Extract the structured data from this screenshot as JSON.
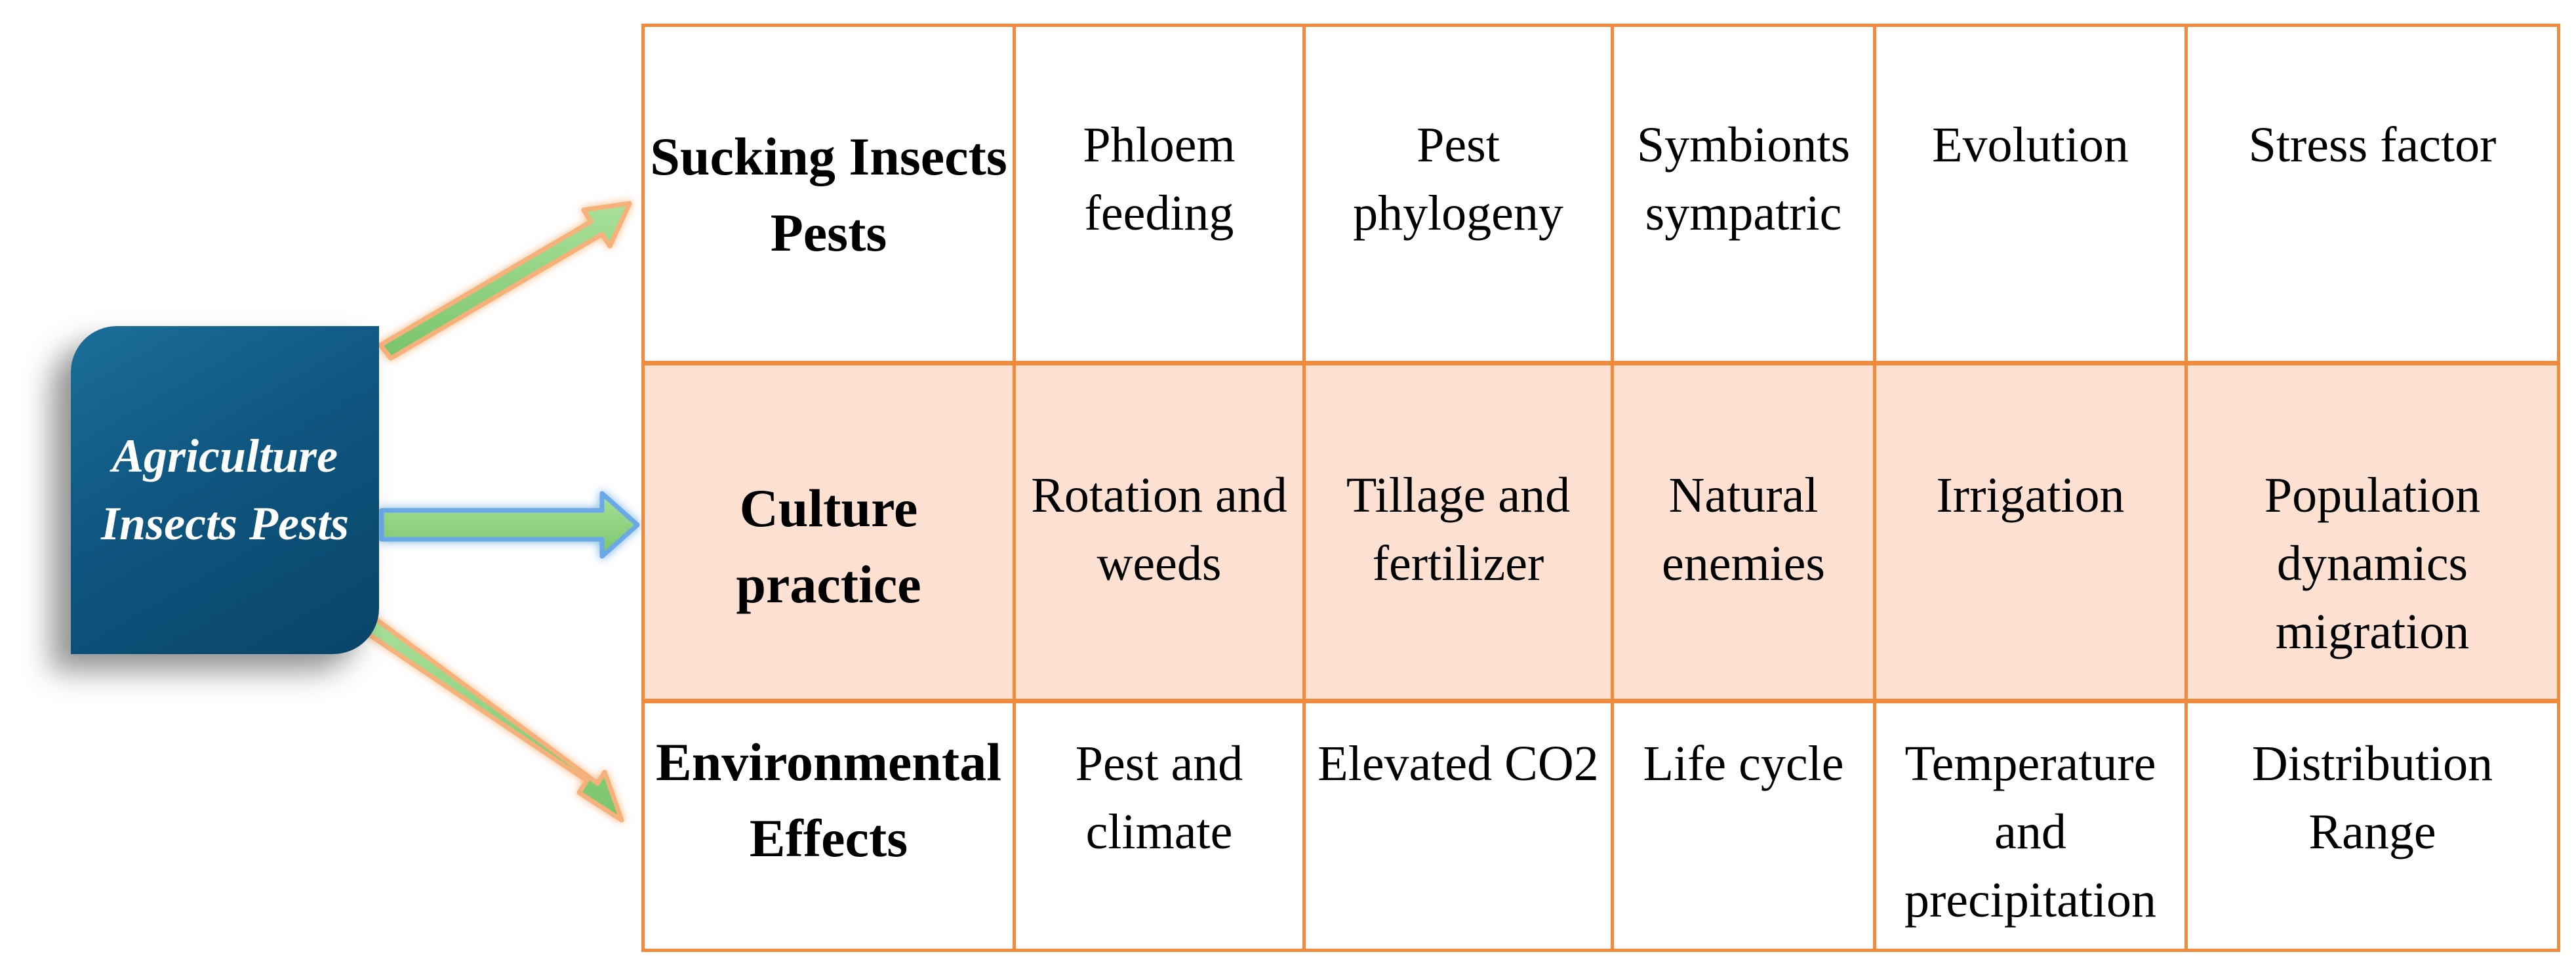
{
  "hub": {
    "label": "Agriculture Insects Pests"
  },
  "table": {
    "rows": [
      {
        "header": "Sucking Insects Pests",
        "cells": [
          "Phloem feeding",
          "Pest phylogeny",
          "Symbionts sympatric",
          "Evolution",
          "Stress factor"
        ]
      },
      {
        "header": "Culture practice",
        "cells": [
          "Rotation and weeds",
          "Tillage and fertilizer",
          "Natural enemies",
          "Irrigation",
          "Population dynamics migration"
        ]
      },
      {
        "header": "Environmental Effects",
        "cells": [
          "Pest and climate",
          "Elevated CO2",
          "Life cycle",
          "Temperature and precipitation",
          "Distribution Range"
        ]
      }
    ]
  },
  "colors": {
    "hub_fill": "#0f5680",
    "table_border": "#f08a3c",
    "highlight_row": "#fce1d3",
    "arrow_fill": "#8fd17f",
    "arrow_glow_orange": "#f6b07a",
    "arrow_glow_blue": "#6aa8e8"
  }
}
